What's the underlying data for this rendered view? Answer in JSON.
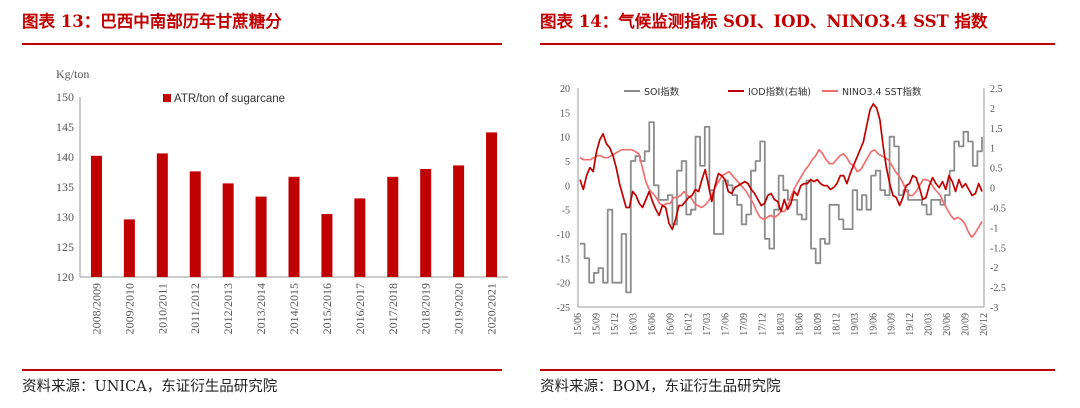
{
  "left": {
    "title": "图表 13：巴西中南部历年甘蔗糖分",
    "source": "资料来源：UNICA，东证衍生品研究院",
    "chart_data": {
      "type": "bar",
      "title": "",
      "ylabel": "Kg/ton",
      "ylim": [
        120,
        150
      ],
      "yticks": [
        120,
        125,
        130,
        135,
        140,
        145,
        150
      ],
      "categories": [
        "2008/2009",
        "2009/2010",
        "2010/2011",
        "2011/2012",
        "2012/2013",
        "2013/2014",
        "2014/2015",
        "2015/2016",
        "2016/2017",
        "2017/2018",
        "2018/2019",
        "2019/2020",
        "2020/2021"
      ],
      "series": [
        {
          "name": "ATR/ton of sugarcane",
          "color": "#c00000",
          "values": [
            140.2,
            129.6,
            140.6,
            137.6,
            135.6,
            133.4,
            136.7,
            130.5,
            133.1,
            136.7,
            138.0,
            138.6,
            144.1
          ]
        }
      ],
      "legend": "top-left"
    }
  },
  "right": {
    "title": "图表 14：气候监测指标 SOI、IOD、NINO3.4 SST 指数",
    "source": "资料来源：BOM，东证衍生品研究院",
    "chart_data": {
      "type": "line",
      "title": "",
      "y_left": {
        "ylim": [
          -25,
          20
        ],
        "ticks": [
          -25,
          -20,
          -15,
          -10,
          -5,
          0,
          5,
          10,
          15,
          20
        ]
      },
      "y_right": {
        "ylim": [
          -3,
          2.5
        ],
        "ticks": [
          "-3",
          "-2.5",
          "-2",
          "-1.5",
          "-1",
          "-0.5",
          "0",
          "0.5",
          "1",
          "1.5",
          "2",
          "2.5"
        ]
      },
      "x_ticks": [
        "15/06",
        "15/09",
        "15/12",
        "16/03",
        "16/06",
        "16/09",
        "16/12",
        "17/03",
        "17/06",
        "17/09",
        "17/12",
        "18/03",
        "18/06",
        "18/09",
        "18/12",
        "19/03",
        "19/06",
        "19/09",
        "19/12",
        "20/03",
        "20/06",
        "20/09",
        "20/12"
      ],
      "legend": "top",
      "series": [
        {
          "name": "SOI指数",
          "color": "#8c8c8c",
          "axis": "left",
          "step": true,
          "values": [
            -12,
            -15,
            -20,
            -18,
            -17,
            -20,
            -5,
            -20,
            -20,
            -10,
            -22,
            5,
            6,
            5,
            7,
            13,
            0,
            -3,
            -3,
            -2,
            -8,
            3,
            5,
            -6,
            -5,
            10,
            4,
            12,
            -1,
            -10,
            -10,
            1,
            0,
            -2,
            -4,
            -8,
            -6,
            3,
            5,
            9,
            -11,
            -13,
            -5,
            2,
            -1,
            -3,
            -3,
            -6,
            -7,
            1,
            -13,
            -16,
            -11,
            -12,
            -4,
            -4,
            -7,
            -9,
            -9,
            -1,
            -5,
            -2,
            -5,
            2,
            3,
            -1,
            -2,
            10,
            8,
            -2,
            -1,
            -3,
            -3,
            -3,
            -4,
            -6,
            -3,
            -3,
            -4,
            -2,
            3,
            9,
            8,
            11,
            9,
            4,
            7,
            10
          ]
        },
        {
          "name": "IOD指数(右轴)",
          "color": "#c00000",
          "axis": "right",
          "step": false,
          "values": [
            0.2,
            -0.05,
            0.3,
            0.5,
            0.4,
            0.9,
            1.2,
            1.35,
            1.1,
            1.0,
            0.8,
            0.5,
            0.1,
            -0.2,
            -0.5,
            -0.5,
            -0.1,
            -0.2,
            -0.4,
            -0.5,
            -0.3,
            -0.1,
            -0.35,
            -0.55,
            -0.7,
            -0.45,
            -0.5,
            -0.9,
            -1.05,
            -0.8,
            -0.45,
            -0.45,
            -0.35,
            -0.25,
            -0.2,
            -0.05,
            -0.1,
            0.2,
            0.45,
            0.05,
            -0.35,
            0.05,
            0.35,
            0.3,
            0.2,
            -0.1,
            -0.15,
            0.0,
            0.05,
            0.1,
            0.15,
            0.1,
            -0.05,
            -0.15,
            -0.3,
            -0.45,
            -0.4,
            -0.2,
            -0.15,
            -0.3,
            -0.35,
            -0.6,
            -0.3,
            -0.55,
            -0.4,
            -0.1,
            -0.2,
            0.05,
            0.1,
            0.1,
            0.2,
            0.15,
            0.2,
            0.1,
            0.05,
            0.05,
            -0.05,
            0.0,
            0.1,
            0.3,
            0.3,
            0.1,
            0.35,
            0.55,
            0.75,
            0.95,
            1.15,
            1.55,
            1.95,
            2.1,
            2.0,
            1.7,
            1.05,
            0.5,
            0.1,
            -0.2,
            -0.25,
            -0.45,
            -0.25,
            0.05,
            0.1,
            0.3,
            0.25,
            0.0,
            -0.3,
            -0.25,
            0.05,
            0.25,
            0.1,
            0.0,
            0.15,
            -0.05,
            0.3,
            0.15,
            -0.1,
            0.2,
            0.0,
            0.1,
            -0.05,
            -0.2,
            -0.15,
            0.1,
            -0.1
          ]
        },
        {
          "name": "NINO3.4 SST指数",
          "color": "#f07070",
          "axis": "right",
          "step": false,
          "values": [
            0.75,
            0.7,
            0.7,
            0.7,
            0.75,
            0.8,
            0.8,
            0.75,
            0.75,
            0.8,
            0.85,
            0.9,
            0.95,
            0.95,
            0.95,
            0.95,
            0.9,
            0.85,
            0.5,
            0.15,
            -0.05,
            -0.15,
            -0.25,
            -0.4,
            -0.45,
            -0.4,
            -0.4,
            -0.25,
            -0.25,
            -0.2,
            -0.1,
            -0.2,
            -0.25,
            -0.4,
            -0.45,
            -0.5,
            -0.45,
            -0.35,
            -0.2,
            0.0,
            0.15,
            0.3,
            0.35,
            0.4,
            0.3,
            0.2,
            0.1,
            0.0,
            -0.1,
            -0.25,
            -0.4,
            -0.6,
            -0.75,
            -0.8,
            -0.75,
            -0.7,
            -0.75,
            -0.7,
            -0.6,
            -0.6,
            -0.45,
            -0.2,
            0.0,
            0.15,
            0.3,
            0.45,
            0.55,
            0.7,
            0.8,
            0.95,
            0.85,
            0.7,
            0.6,
            0.6,
            0.7,
            0.8,
            0.85,
            0.75,
            0.6,
            0.55,
            0.4,
            0.45,
            0.6,
            0.75,
            0.9,
            0.95,
            0.85,
            0.8,
            0.75,
            0.7,
            0.55,
            0.4,
            0.3,
            0.15,
            -0.05,
            -0.2,
            -0.2,
            -0.1,
            0.05,
            0.2,
            0.2,
            0.15,
            0.0,
            -0.1,
            -0.2,
            -0.4,
            -0.55,
            -0.7,
            -0.8,
            -0.75,
            -0.8,
            -0.9,
            -1.1,
            -1.25,
            -1.15,
            -1.0,
            -0.85
          ]
        }
      ]
    }
  }
}
